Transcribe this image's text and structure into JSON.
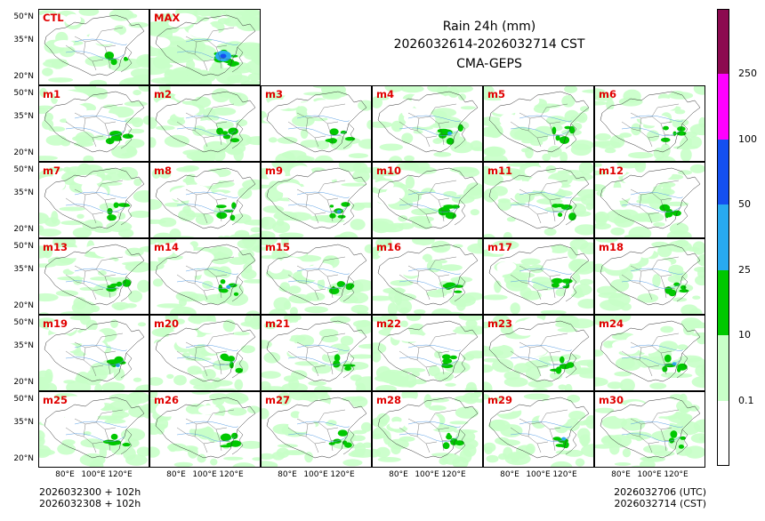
{
  "title": {
    "line1": "Rain 24h (mm)",
    "line2": "2026032614-2026032714 CST",
    "line3": "CMA-GEPS"
  },
  "panels": {
    "top": [
      "CTL",
      "MAX"
    ],
    "members": [
      "m1",
      "m2",
      "m3",
      "m4",
      "m5",
      "m6",
      "m7",
      "m8",
      "m9",
      "m10",
      "m11",
      "m12",
      "m13",
      "m14",
      "m15",
      "m16",
      "m17",
      "m18",
      "m19",
      "m20",
      "m21",
      "m22",
      "m23",
      "m24",
      "m25",
      "m26",
      "m27",
      "m28",
      "m29",
      "m30"
    ]
  },
  "axes": {
    "lat_ticks": [
      "50°N",
      "35°N",
      "20°N"
    ],
    "lon_ticks": [
      "80°E",
      "100°E",
      "120°E"
    ]
  },
  "footer": {
    "left_line1": "2026032300 + 102h",
    "left_line2": "2026032308 + 102h",
    "right_line1": "2026032706 (UTC)",
    "right_line2": "2026032714 (CST)"
  },
  "colorbar": {
    "labels": [
      "0.1",
      "10",
      "25",
      "50",
      "100",
      "250"
    ],
    "colors": [
      "#ffffff",
      "#c8ffc8",
      "#00c800",
      "#28aaf0",
      "#1450f0",
      "#ff00ff",
      "#8c0a50"
    ],
    "ocean_color": "#ffffff",
    "land_rain_color": "#c8ffc8"
  }
}
